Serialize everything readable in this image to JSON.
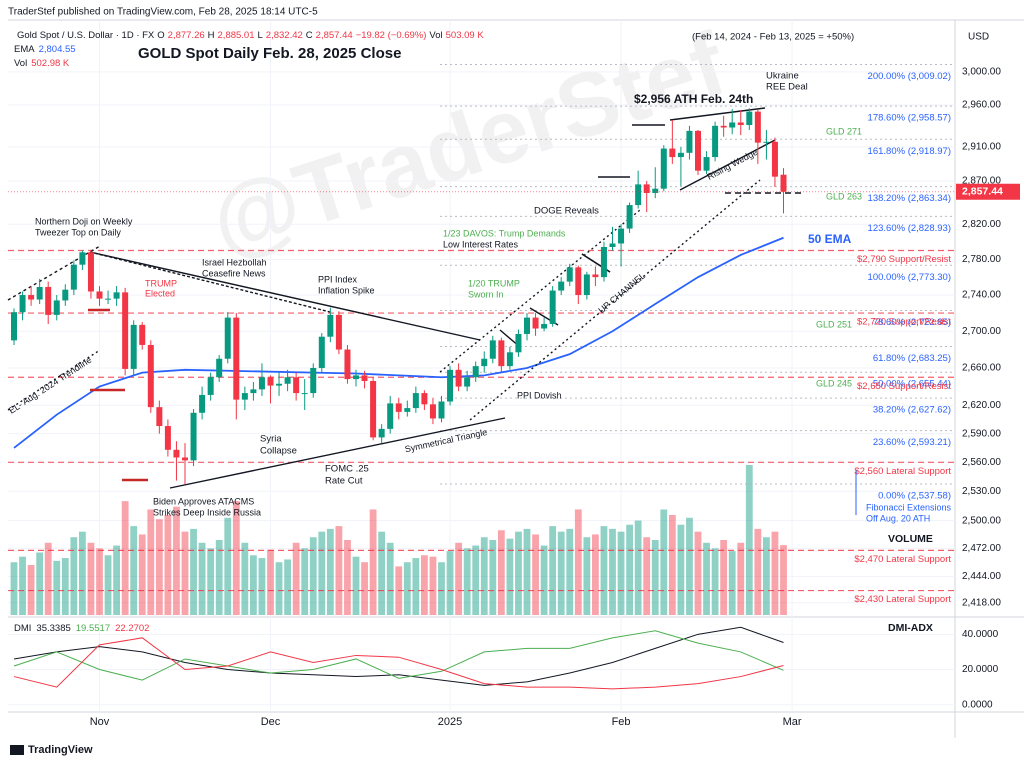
{
  "chart_data": [
    {
      "type": "candlestick",
      "publisher": "TraderStef published on TradingView.com, Feb 28, 2025 18:14 UTC-5",
      "title": "GOLD Spot Daily Feb. 28, 2025 Close",
      "symbol": "Gold Spot / U.S. Dollar · 1D · FX",
      "ohlc_keys": [
        "O",
        "H",
        "L",
        "C"
      ],
      "last_labels": [
        "2,877.26",
        "2,885.01",
        "2,832.42",
        "2,857.44"
      ],
      "change_label": "−19.82 (−0.69%)",
      "period_note": "(Feb 14, 2024 - Feb 13, 2025 = +50%)",
      "currency": "USD",
      "watermark": "@TraderStef",
      "footer": "TradingView",
      "log": true,
      "grid": true,
      "ylim": [
        2406,
        3054
      ],
      "yticks": [
        {
          "value": 3000,
          "label": "3,000.00"
        },
        {
          "value": 2960,
          "label": "2,960.00"
        },
        {
          "value": 2910,
          "label": "2,910.00"
        },
        {
          "value": 2870,
          "label": "2,870.00"
        },
        {
          "value": 2820,
          "label": "2,820.00"
        },
        {
          "value": 2780,
          "label": "2,780.00"
        },
        {
          "value": 2740,
          "label": "2,740.00"
        },
        {
          "value": 2700,
          "label": "2,700.00"
        },
        {
          "value": 2660,
          "label": "2,660.00"
        },
        {
          "value": 2620,
          "label": "2,620.00"
        },
        {
          "value": 2590,
          "label": "2,590.00"
        },
        {
          "value": 2560,
          "label": "2,560.00"
        },
        {
          "value": 2530,
          "label": "2,530.00"
        },
        {
          "value": 2500,
          "label": "2,500.00"
        },
        {
          "value": 2472,
          "label": "2,472.00"
        },
        {
          "value": 2444,
          "label": "2,444.00"
        },
        {
          "value": 2418,
          "label": "2,418.00"
        }
      ],
      "xticks": [
        {
          "value": 10,
          "label": "Nov"
        },
        {
          "value": 30,
          "label": "Dec"
        },
        {
          "value": 51,
          "label": "2025"
        },
        {
          "value": 71,
          "label": "Feb"
        },
        {
          "value": 91,
          "label": "Mar"
        }
      ],
      "up_color": "#089981",
      "down_color": "#f23645",
      "ohlc": [
        [
          2690,
          2725,
          2685,
          2721
        ],
        [
          2721,
          2744,
          2712,
          2740
        ],
        [
          2740,
          2750,
          2728,
          2735
        ],
        [
          2735,
          2758,
          2730,
          2749
        ],
        [
          2749,
          2755,
          2708,
          2718
        ],
        [
          2718,
          2740,
          2712,
          2734
        ],
        [
          2734,
          2752,
          2728,
          2746
        ],
        [
          2746,
          2779,
          2740,
          2774
        ],
        [
          2774,
          2790,
          2768,
          2788
        ],
        [
          2788,
          2791,
          2736,
          2744
        ],
        [
          2744,
          2750,
          2728,
          2736
        ],
        [
          2736,
          2745,
          2730,
          2736
        ],
        [
          2736,
          2750,
          2728,
          2743
        ],
        [
          2743,
          2748,
          2652,
          2659
        ],
        [
          2659,
          2712,
          2652,
          2707
        ],
        [
          2707,
          2710,
          2680,
          2685
        ],
        [
          2685,
          2690,
          2612,
          2618
        ],
        [
          2618,
          2625,
          2590,
          2598
        ],
        [
          2598,
          2605,
          2566,
          2573
        ],
        [
          2573,
          2582,
          2541,
          2565
        ],
        [
          2565,
          2580,
          2537,
          2562
        ],
        [
          2562,
          2616,
          2556,
          2612
        ],
        [
          2612,
          2640,
          2605,
          2631
        ],
        [
          2631,
          2655,
          2625,
          2650
        ],
        [
          2650,
          2674,
          2645,
          2670
        ],
        [
          2670,
          2721,
          2665,
          2715
        ],
        [
          2715,
          2720,
          2605,
          2626
        ],
        [
          2626,
          2640,
          2615,
          2633
        ],
        [
          2633,
          2645,
          2625,
          2637
        ],
        [
          2637,
          2665,
          2630,
          2650
        ],
        [
          2650,
          2652,
          2622,
          2641
        ],
        [
          2641,
          2655,
          2630,
          2643
        ],
        [
          2643,
          2658,
          2635,
          2650
        ],
        [
          2650,
          2655,
          2625,
          2633
        ],
        [
          2633,
          2648,
          2615,
          2633
        ],
        [
          2633,
          2665,
          2628,
          2660
        ],
        [
          2660,
          2698,
          2655,
          2694
        ],
        [
          2694,
          2726,
          2688,
          2718
        ],
        [
          2718,
          2722,
          2675,
          2680
        ],
        [
          2680,
          2685,
          2643,
          2648
        ],
        [
          2648,
          2658,
          2640,
          2652
        ],
        [
          2652,
          2657,
          2638,
          2646
        ],
        [
          2646,
          2650,
          2583,
          2586
        ],
        [
          2586,
          2600,
          2580,
          2595
        ],
        [
          2595,
          2630,
          2590,
          2622
        ],
        [
          2622,
          2628,
          2605,
          2613
        ],
        [
          2613,
          2625,
          2608,
          2617
        ],
        [
          2617,
          2640,
          2612,
          2633
        ],
        [
          2633,
          2636,
          2615,
          2621
        ],
        [
          2621,
          2628,
          2600,
          2606
        ],
        [
          2606,
          2630,
          2602,
          2624
        ],
        [
          2624,
          2662,
          2620,
          2658
        ],
        [
          2658,
          2665,
          2635,
          2640
        ],
        [
          2640,
          2657,
          2635,
          2650
        ],
        [
          2650,
          2667,
          2645,
          2662
        ],
        [
          2662,
          2678,
          2655,
          2670
        ],
        [
          2670,
          2695,
          2665,
          2690
        ],
        [
          2690,
          2693,
          2656,
          2662
        ],
        [
          2662,
          2683,
          2658,
          2677
        ],
        [
          2677,
          2702,
          2672,
          2697
        ],
        [
          2697,
          2720,
          2690,
          2715
        ],
        [
          2715,
          2720,
          2695,
          2703
        ],
        [
          2703,
          2715,
          2700,
          2708
        ],
        [
          2708,
          2750,
          2705,
          2745
        ],
        [
          2745,
          2760,
          2740,
          2755
        ],
        [
          2755,
          2775,
          2750,
          2771
        ],
        [
          2771,
          2773,
          2730,
          2740
        ],
        [
          2740,
          2766,
          2735,
          2763
        ],
        [
          2763,
          2772,
          2750,
          2760
        ],
        [
          2760,
          2800,
          2755,
          2794
        ],
        [
          2794,
          2817,
          2790,
          2798
        ],
        [
          2798,
          2820,
          2772,
          2815
        ],
        [
          2815,
          2845,
          2810,
          2842
        ],
        [
          2842,
          2882,
          2838,
          2866
        ],
        [
          2866,
          2870,
          2834,
          2856
        ],
        [
          2856,
          2886,
          2850,
          2861
        ],
        [
          2861,
          2912,
          2858,
          2908
        ],
        [
          2908,
          2942,
          2890,
          2898
        ],
        [
          2898,
          2910,
          2864,
          2903
        ],
        [
          2903,
          2935,
          2895,
          2929
        ],
        [
          2929,
          2930,
          2877,
          2882
        ],
        [
          2882,
          2905,
          2878,
          2898
        ],
        [
          2898,
          2940,
          2893,
          2935
        ],
        [
          2935,
          2947,
          2922,
          2933
        ],
        [
          2933,
          2955,
          2925,
          2939
        ],
        [
          2939,
          2954,
          2924,
          2936
        ],
        [
          2936,
          2956,
          2930,
          2952
        ],
        [
          2952,
          2954,
          2890,
          2915
        ],
        [
          2915,
          2930,
          2895,
          2916
        ],
        [
          2916,
          2921,
          2863,
          2875
        ],
        [
          2877.26,
          2885.01,
          2832.42,
          2857.44
        ]
      ],
      "ema": {
        "name": "50 EMA",
        "legend": "EMA",
        "color": "#2962ff",
        "x": [
          0,
          5,
          10,
          15,
          20,
          25,
          30,
          35,
          40,
          45,
          50,
          55,
          60,
          65,
          70,
          75,
          80,
          85,
          90
        ],
        "values": [
          2575,
          2610,
          2640,
          2655,
          2658,
          2657,
          2656,
          2655,
          2654,
          2652,
          2650,
          2652,
          2660,
          2675,
          2700,
          2730,
          2760,
          2785,
          2804.55
        ],
        "value_label": "2,804.55"
      },
      "volume": {
        "name": "VOLUME",
        "legend": "Vol",
        "last_label": "503.09 K",
        "ma_label": "502.98 K",
        "values": [
          380,
          420,
          360,
          450,
          520,
          390,
          410,
          560,
          600,
          520,
          480,
          430,
          500,
          820,
          640,
          580,
          760,
          690,
          720,
          780,
          600,
          620,
          520,
          480,
          540,
          700,
          820,
          520,
          430,
          410,
          470,
          380,
          400,
          520,
          480,
          560,
          600,
          620,
          640,
          540,
          420,
          380,
          760,
          600,
          520,
          350,
          380,
          410,
          430,
          420,
          380,
          460,
          520,
          480,
          500,
          560,
          540,
          610,
          550,
          600,
          620,
          580,
          500,
          640,
          600,
          620,
          760,
          560,
          580,
          640,
          620,
          600,
          650,
          680,
          560,
          540,
          760,
          720,
          650,
          700,
          600,
          520,
          480,
          540,
          460,
          520,
          1080,
          620,
          560,
          600,
          503.09
        ]
      },
      "levels": [
        {
          "value": 3009.02,
          "label": "200.00% (3,009.02)",
          "kind": "fib"
        },
        {
          "value": 2958.57,
          "label": "178.60% (2,958.57)",
          "kind": "fib"
        },
        {
          "value": 2918.97,
          "label": "161.80% (2,918.97)",
          "kind": "fib"
        },
        {
          "value": 2863.34,
          "label": "138.20% (2,863.34)",
          "kind": "fib"
        },
        {
          "value": 2828.93,
          "label": "123.60% (2,828.93)",
          "kind": "fib"
        },
        {
          "value": 2773.3,
          "label": "100.00% (2,773.30)",
          "kind": "fib"
        },
        {
          "value": 2722.85,
          "label": "78.60% (2,722.85)",
          "kind": "fib"
        },
        {
          "value": 2683.25,
          "label": "61.80% (2,683.25)",
          "kind": "fib"
        },
        {
          "value": 2655.44,
          "label": "50.00% (2,655.44)",
          "kind": "fib"
        },
        {
          "value": 2627.62,
          "label": "38.20% (2,627.62)",
          "kind": "fib"
        },
        {
          "value": 2593.21,
          "label": "23.60% (2,593.21)",
          "kind": "fib"
        },
        {
          "value": 2537.58,
          "label": "0.00% (2,537.58)",
          "kind": "fib"
        },
        {
          "value": 2790,
          "label": "$2,790 Support/Resist",
          "kind": "support"
        },
        {
          "value": 2720,
          "label": "$2,720 Support/Resist",
          "kind": "support"
        },
        {
          "value": 2650,
          "label": "$2,650 Support/Resist",
          "kind": "support"
        },
        {
          "value": 2560,
          "label": "$2,560 Lateral Support",
          "kind": "support"
        },
        {
          "value": 2470,
          "label": "$2,470 Lateral Support",
          "kind": "support"
        },
        {
          "value": 2430,
          "label": "$2,430 Lateral Support",
          "kind": "support"
        }
      ],
      "annotations": [
        "Northern Doji on Weekly",
        "Tweezer Top on Daily",
        "TRUMP",
        "Elected",
        "Israel Hezbollah",
        "Ceasefire News",
        "PPI Index",
        "Inflation Spike",
        "1/23 DAVOS: Trump Demands",
        "Low Interest Rates",
        "DOGE Reveals",
        "1/20 TRUMP",
        "Sworn In",
        "PPI Dovish",
        "Syria",
        "Collapse",
        "FOMC .25",
        "Rate Cut",
        "Biden Approves ATACMS",
        "Strikes Deep Inside Russia",
        "Symmetrical Triangle",
        "$2,956 ATH Feb. 24th",
        "Ukraine",
        "REE Deal",
        "Rising Wedge",
        "UP CHANNEL",
        "EL- Aug. 2024 Trendline",
        "Fibonacci Extensions",
        "Off Aug. 20 ATH",
        "GLD 271",
        "GLD 263",
        "GLD 251",
        "GLD 245"
      ]
    },
    {
      "type": "line",
      "title": "DMI-ADX",
      "legend": "DMI",
      "ylim": [
        -3,
        47
      ],
      "yticks": [
        {
          "value": 40,
          "label": "40.0000"
        },
        {
          "value": 20,
          "label": "20.0000"
        },
        {
          "value": 0,
          "label": "0.0000"
        }
      ],
      "x": [
        0,
        5,
        10,
        15,
        20,
        25,
        30,
        35,
        40,
        45,
        50,
        55,
        60,
        65,
        70,
        75,
        80,
        85,
        90
      ],
      "series": [
        {
          "color": "#131722",
          "values": [
            26,
            30,
            33,
            30,
            24,
            20,
            18,
            17,
            16,
            17,
            14,
            11,
            13,
            18,
            24,
            32,
            40,
            44,
            35.3385
          ],
          "value_label": "35.3385"
        },
        {
          "color": "#4caf50",
          "values": [
            22,
            30,
            20,
            14,
            26,
            22,
            18,
            20,
            26,
            15,
            19,
            30,
            32,
            32,
            38,
            42,
            35,
            30,
            19.5517
          ],
          "value_label": "19.5517"
        },
        {
          "color": "#f23645",
          "values": [
            16,
            10,
            34,
            38,
            20,
            22,
            30,
            24,
            28,
            27,
            20,
            12,
            10,
            10,
            9,
            10,
            12,
            16,
            22.2702
          ],
          "value_label": "22.2702"
        }
      ]
    }
  ]
}
